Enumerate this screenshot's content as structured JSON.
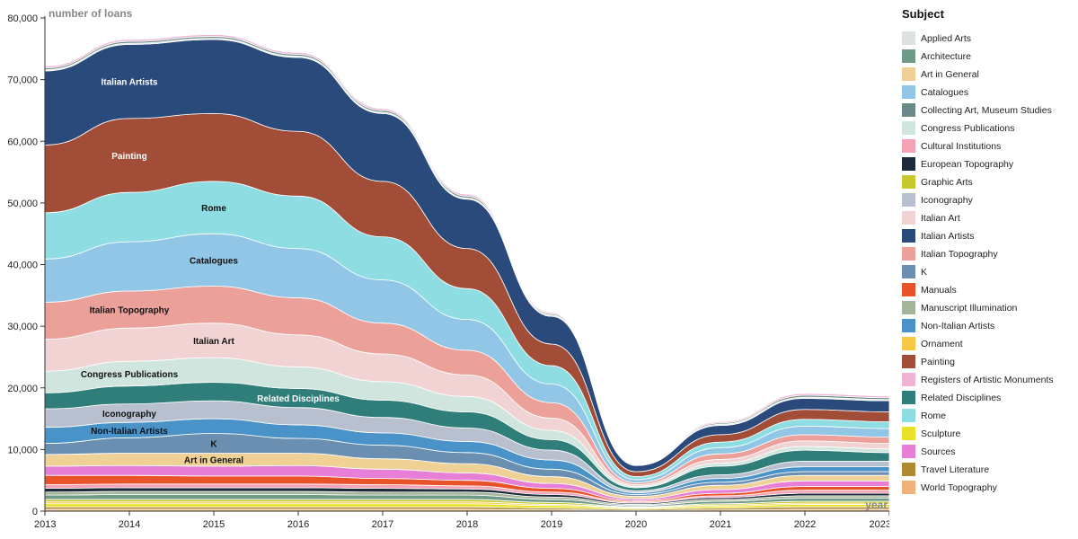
{
  "chart_data": {
    "type": "area",
    "subtype": "streamgraph",
    "ylabel": "number of loans",
    "xlabel": "year",
    "x": [
      2013,
      2014,
      2015,
      2016,
      2017,
      2018,
      2019,
      2020,
      2021,
      2022,
      2023
    ],
    "ylim": [
      0,
      80000
    ],
    "y_ticks": [
      0,
      10000,
      20000,
      30000,
      40000,
      50000,
      60000,
      70000,
      80000
    ],
    "y_tick_labels": [
      "0",
      "10,000",
      "20,000",
      "30,000",
      "40,000",
      "50,000",
      "60,000",
      "70,000",
      "80,000"
    ],
    "x_tick_labels": [
      "2013",
      "2014",
      "2015",
      "2016",
      "2017",
      "2018",
      "2019",
      "2020",
      "2021",
      "2022",
      "2023"
    ],
    "legend_title": "Subject",
    "legend_position": "right",
    "series": [
      {
        "name": "World Topography",
        "color": "#f0b27a",
        "values": [
          300,
          300,
          300,
          300,
          300,
          300,
          200,
          100,
          200,
          300,
          300
        ],
        "label": ""
      },
      {
        "name": "Travel Literature",
        "color": "#b08a32",
        "values": [
          400,
          400,
          400,
          400,
          400,
          400,
          300,
          200,
          300,
          400,
          400
        ],
        "label": ""
      },
      {
        "name": "Sculpture",
        "color": "#e7e228",
        "values": [
          500,
          500,
          500,
          500,
          500,
          500,
          400,
          200,
          300,
          400,
          400
        ],
        "label": ""
      },
      {
        "name": "Ornament",
        "color": "#f7c841",
        "values": [
          300,
          300,
          300,
          300,
          300,
          300,
          200,
          100,
          200,
          200,
          200
        ],
        "label": ""
      },
      {
        "name": "Graphic Arts",
        "color": "#c5c92c",
        "values": [
          400,
          400,
          400,
          400,
          400,
          400,
          300,
          100,
          200,
          300,
          300
        ],
        "label": ""
      },
      {
        "name": "Architecture",
        "color": "#6f9a88",
        "values": [
          700,
          800,
          800,
          800,
          700,
          700,
          500,
          200,
          400,
          500,
          500
        ],
        "label": ""
      },
      {
        "name": "Manuscript Illumination",
        "color": "#a4b59b",
        "values": [
          500,
          500,
          500,
          500,
          500,
          500,
          400,
          200,
          300,
          400,
          400
        ],
        "label": ""
      },
      {
        "name": "European Topography",
        "color": "#1d2a3a",
        "values": [
          600,
          600,
          600,
          600,
          600,
          500,
          400,
          200,
          300,
          400,
          400
        ],
        "label": ""
      },
      {
        "name": "Cultural Institutions",
        "color": "#f4a3b7",
        "values": [
          600,
          600,
          600,
          600,
          600,
          500,
          400,
          200,
          300,
          500,
          500
        ],
        "label": ""
      },
      {
        "name": "Manuals",
        "color": "#e8532a",
        "values": [
          1500,
          1400,
          1300,
          1300,
          1000,
          900,
          600,
          200,
          400,
          600,
          600
        ],
        "label": ""
      },
      {
        "name": "Sources",
        "color": "#e87fd6",
        "values": [
          1500,
          1600,
          1600,
          1700,
          1500,
          1200,
          800,
          300,
          600,
          900,
          900
        ],
        "label": ""
      },
      {
        "name": "Art in General",
        "color": "#efd095",
        "values": [
          1900,
          2000,
          2100,
          2000,
          1700,
          1500,
          1100,
          400,
          700,
          900,
          900
        ],
        "label": "Art in General"
      },
      {
        "name": "K",
        "color": "#6b8fb1",
        "values": [
          1800,
          2500,
          3200,
          2400,
          2200,
          1800,
          1200,
          300,
          500,
          600,
          600
        ],
        "label": "K"
      },
      {
        "name": "Non-Italian Artists",
        "color": "#4a93c9",
        "values": [
          2600,
          2500,
          2400,
          2200,
          2000,
          1800,
          1500,
          300,
          600,
          800,
          800
        ],
        "label": "Non-Italian Artists"
      },
      {
        "name": "Iconography",
        "color": "#b8bfcf",
        "values": [
          3000,
          3000,
          2900,
          2800,
          2500,
          2200,
          1600,
          300,
          600,
          900,
          900
        ],
        "label": "Iconography"
      },
      {
        "name": "Related Disciplines",
        "color": "#2f7e7a",
        "values": [
          2600,
          2900,
          3000,
          3100,
          2800,
          2600,
          1700,
          500,
          1400,
          1800,
          1400
        ],
        "label": "Related Disciplines"
      },
      {
        "name": "Congress Publications",
        "color": "#cfe5de",
        "values": [
          3500,
          4000,
          4000,
          3500,
          3000,
          2500,
          1500,
          200,
          500,
          600,
          600
        ],
        "label": "Congress Publications"
      },
      {
        "name": "Italian Art",
        "color": "#f2d3d3",
        "values": [
          5200,
          5400,
          5600,
          5200,
          4500,
          3500,
          2000,
          300,
          600,
          900,
          900
        ],
        "label": "Italian Art"
      },
      {
        "name": "Italian Topography",
        "color": "#eba19a",
        "values": [
          6000,
          6000,
          6000,
          6000,
          5000,
          4000,
          2500,
          300,
          900,
          1000,
          1000
        ],
        "label": "Italian Topography"
      },
      {
        "name": "Catalogues",
        "color": "#92c6e6",
        "values": [
          7000,
          8000,
          8500,
          8000,
          7000,
          5000,
          3000,
          500,
          1000,
          1400,
          1400
        ],
        "label": "Catalogues"
      },
      {
        "name": "Rome",
        "color": "#8ddde3",
        "values": [
          7500,
          8000,
          8500,
          8500,
          7000,
          5000,
          3000,
          500,
          900,
          1100,
          1100
        ],
        "label": "Rome"
      },
      {
        "name": "Painting",
        "color": "#a14d38",
        "values": [
          11000,
          12000,
          11000,
          10500,
          9000,
          6500,
          3500,
          800,
          1200,
          1600,
          1600
        ],
        "label": "Painting"
      },
      {
        "name": "Italian Artists",
        "color": "#2a4a7b",
        "values": [
          12000,
          12000,
          12000,
          12000,
          11000,
          8000,
          4500,
          1000,
          1500,
          1800,
          1800
        ],
        "label": "Italian Artists"
      },
      {
        "name": "Applied Arts",
        "color": "#dbe2e0",
        "values": [
          200,
          200,
          200,
          200,
          200,
          200,
          200,
          100,
          200,
          200,
          200
        ],
        "label": ""
      },
      {
        "name": "Collecting Art, Museum Studies",
        "color": "#6a8a87",
        "values": [
          300,
          300,
          300,
          300,
          300,
          300,
          200,
          100,
          200,
          300,
          300
        ],
        "label": ""
      },
      {
        "name": "Registers of Artistic Monuments",
        "color": "#f0b3d3",
        "values": [
          300,
          300,
          300,
          300,
          300,
          300,
          200,
          100,
          200,
          300,
          300
        ],
        "label": ""
      }
    ]
  },
  "legend": {
    "title": "Subject",
    "items": [
      {
        "label": "Applied Arts",
        "color": "#dbe2e0"
      },
      {
        "label": "Architecture",
        "color": "#6f9a88"
      },
      {
        "label": "Art in General",
        "color": "#efd095"
      },
      {
        "label": "Catalogues",
        "color": "#92c6e6"
      },
      {
        "label": "Collecting Art, Museum Studies",
        "color": "#6a8a87"
      },
      {
        "label": "Congress Publications",
        "color": "#cfe5de"
      },
      {
        "label": "Cultural Institutions",
        "color": "#f4a3b7"
      },
      {
        "label": "European Topography",
        "color": "#1d2a3a"
      },
      {
        "label": "Graphic Arts",
        "color": "#c5c92c"
      },
      {
        "label": "Iconography",
        "color": "#b8bfcf"
      },
      {
        "label": "Italian Art",
        "color": "#f2d3d3"
      },
      {
        "label": "Italian Artists",
        "color": "#2a4a7b"
      },
      {
        "label": "Italian Topography",
        "color": "#eba19a"
      },
      {
        "label": "K",
        "color": "#6b8fb1"
      },
      {
        "label": "Manuals",
        "color": "#e8532a"
      },
      {
        "label": "Manuscript Illumination",
        "color": "#a4b59b"
      },
      {
        "label": "Non-Italian Artists",
        "color": "#4a93c9"
      },
      {
        "label": "Ornament",
        "color": "#f7c841"
      },
      {
        "label": "Painting",
        "color": "#a14d38"
      },
      {
        "label": "Registers of Artistic Monuments",
        "color": "#f0b3d3"
      },
      {
        "label": "Related Disciplines",
        "color": "#2f7e7a"
      },
      {
        "label": "Rome",
        "color": "#8ddde3"
      },
      {
        "label": "Sculpture",
        "color": "#e7e228"
      },
      {
        "label": "Sources",
        "color": "#e87fd6"
      },
      {
        "label": "Travel Literature",
        "color": "#b08a32"
      },
      {
        "label": "World Topography",
        "color": "#f0b27a"
      }
    ]
  }
}
